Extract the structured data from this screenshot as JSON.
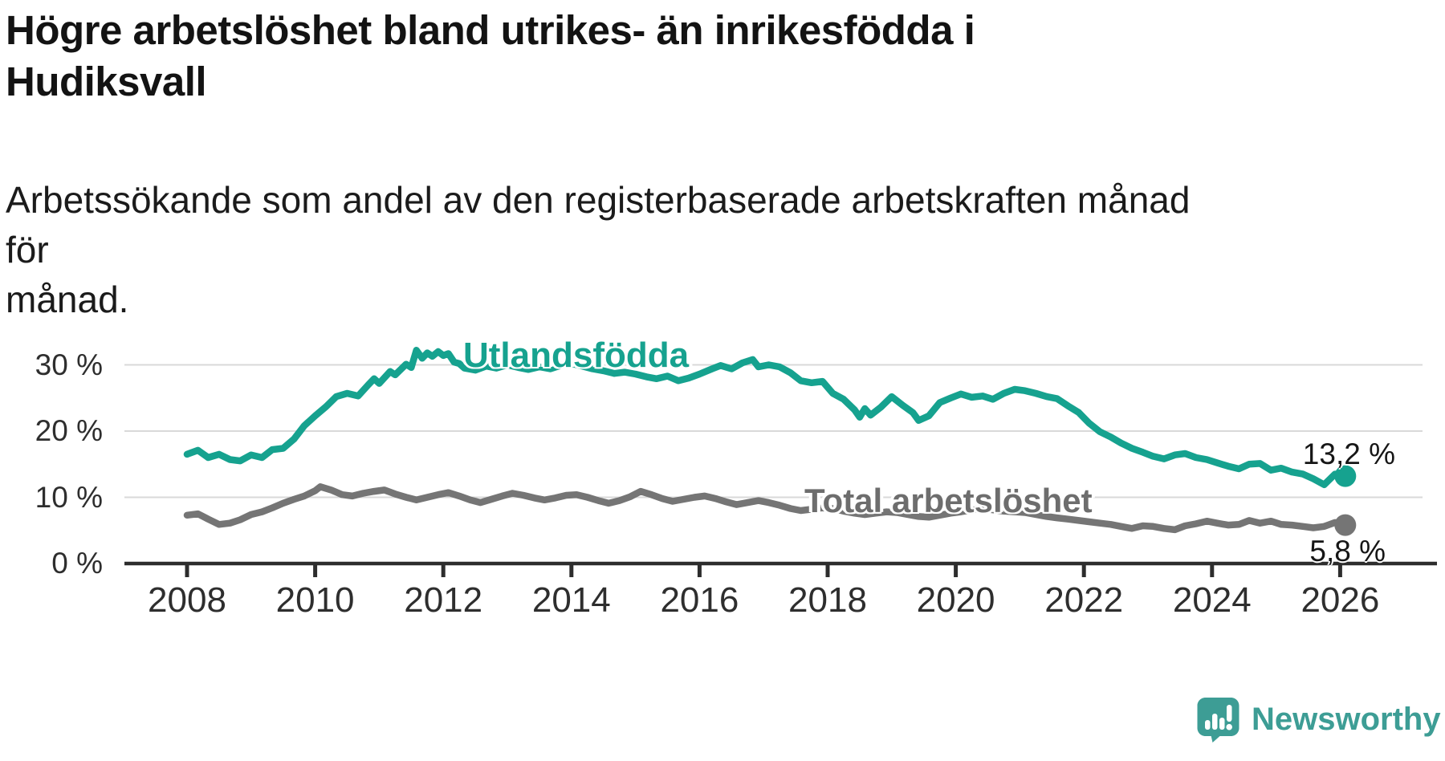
{
  "chart_data": {
    "type": "line",
    "title": "Högre arbetslöshet bland utrikes- än inrikesfödda i Hudiksvall",
    "title_lines": [
      "Högre arbetslöshet bland utrikes- än inrikesfödda i",
      "Hudiksvall"
    ],
    "subtitle": "Arbetssökande som andel av den registerbaserade arbetskraften månad för månad.",
    "subtitle_lines": [
      "Arbetssökande som andel av den registerbaserade arbetskraften månad för",
      "månad."
    ],
    "xlabel": "",
    "ylabel": "",
    "unit": "%",
    "grid": "horizontal",
    "legend_position": "inline-labels-on-chart",
    "axis": {
      "xlim": [
        2007.1,
        2027.5
      ],
      "ylim": [
        0,
        34.6
      ],
      "x_ticks": [
        2008,
        2010,
        2012,
        2014,
        2016,
        2018,
        2020,
        2022,
        2024,
        2026
      ],
      "y_ticks": [
        {
          "value": 0,
          "label": "0 %"
        },
        {
          "value": 10,
          "label": "10 %"
        },
        {
          "value": 20,
          "label": "20 %"
        },
        {
          "value": 30,
          "label": "30 %"
        }
      ]
    },
    "colors": {
      "utlandsfodda": "#16a28f",
      "total": "#757575",
      "gridline": "#d9d9d9",
      "axis_line": "#2d2d2d",
      "tick_text": "#2e2e2e"
    },
    "series": [
      {
        "name": "Utlandsfödda",
        "color": "#16a28f",
        "end_label": "13,2 %",
        "end_value": 13.2,
        "end_dot": true,
        "points": [
          [
            2008,
            16.5
          ],
          [
            2008.17,
            17.1
          ],
          [
            2008.33,
            16
          ],
          [
            2008.5,
            16.5
          ],
          [
            2008.67,
            15.7
          ],
          [
            2008.83,
            15.5
          ],
          [
            2009,
            16.4
          ],
          [
            2009.17,
            16
          ],
          [
            2009.33,
            17.2
          ],
          [
            2009.5,
            17.4
          ],
          [
            2009.67,
            18.8
          ],
          [
            2009.83,
            20.8
          ],
          [
            2010,
            22.3
          ],
          [
            2010.17,
            23.7
          ],
          [
            2010.33,
            25.2
          ],
          [
            2010.5,
            25.7
          ],
          [
            2010.67,
            25.3
          ],
          [
            2010.83,
            27
          ],
          [
            2010.92,
            27.9
          ],
          [
            2011,
            27.2
          ],
          [
            2011.17,
            29
          ],
          [
            2011.25,
            28.5
          ],
          [
            2011.42,
            30.1
          ],
          [
            2011.5,
            29.6
          ],
          [
            2011.58,
            32.2
          ],
          [
            2011.67,
            31
          ],
          [
            2011.75,
            31.8
          ],
          [
            2011.83,
            31.3
          ],
          [
            2011.92,
            32
          ],
          [
            2012,
            31.4
          ],
          [
            2012.08,
            31.7
          ],
          [
            2012.17,
            30.4
          ],
          [
            2012.25,
            30.2
          ],
          [
            2012.33,
            29.5
          ],
          [
            2012.5,
            29.2
          ],
          [
            2012.67,
            29.8
          ],
          [
            2012.83,
            29.5
          ],
          [
            2013,
            30
          ],
          [
            2013.17,
            29.6
          ],
          [
            2013.33,
            29.3
          ],
          [
            2013.5,
            29.7
          ],
          [
            2013.67,
            29.4
          ],
          [
            2013.83,
            29.9
          ],
          [
            2014,
            30.2
          ],
          [
            2014.17,
            29.8
          ],
          [
            2014.33,
            29.4
          ],
          [
            2014.5,
            29.1
          ],
          [
            2014.67,
            28.7
          ],
          [
            2014.83,
            28.9
          ],
          [
            2015,
            28.6
          ],
          [
            2015.17,
            28.2
          ],
          [
            2015.33,
            27.9
          ],
          [
            2015.5,
            28.3
          ],
          [
            2015.67,
            27.6
          ],
          [
            2015.83,
            28
          ],
          [
            2016,
            28.6
          ],
          [
            2016.17,
            29.3
          ],
          [
            2016.33,
            29.9
          ],
          [
            2016.5,
            29.4
          ],
          [
            2016.67,
            30.3
          ],
          [
            2016.83,
            30.8
          ],
          [
            2016.92,
            29.7
          ],
          [
            2017.08,
            30
          ],
          [
            2017.25,
            29.7
          ],
          [
            2017.42,
            28.8
          ],
          [
            2017.58,
            27.6
          ],
          [
            2017.75,
            27.3
          ],
          [
            2017.92,
            27.5
          ],
          [
            2018.08,
            25.7
          ],
          [
            2018.25,
            24.8
          ],
          [
            2018.42,
            23.2
          ],
          [
            2018.5,
            22.1
          ],
          [
            2018.58,
            23.4
          ],
          [
            2018.67,
            22.4
          ],
          [
            2018.83,
            23.6
          ],
          [
            2019,
            25.2
          ],
          [
            2019.17,
            23.9
          ],
          [
            2019.33,
            22.8
          ],
          [
            2019.42,
            21.6
          ],
          [
            2019.58,
            22.3
          ],
          [
            2019.75,
            24.3
          ],
          [
            2019.92,
            25
          ],
          [
            2020.08,
            25.6
          ],
          [
            2020.25,
            25.1
          ],
          [
            2020.42,
            25.3
          ],
          [
            2020.58,
            24.8
          ],
          [
            2020.75,
            25.7
          ],
          [
            2020.92,
            26.3
          ],
          [
            2021.08,
            26.1
          ],
          [
            2021.25,
            25.7
          ],
          [
            2021.42,
            25.2
          ],
          [
            2021.58,
            24.9
          ],
          [
            2021.75,
            23.8
          ],
          [
            2021.92,
            22.8
          ],
          [
            2022.08,
            21.2
          ],
          [
            2022.25,
            19.9
          ],
          [
            2022.42,
            19.1
          ],
          [
            2022.58,
            18.2
          ],
          [
            2022.75,
            17.4
          ],
          [
            2022.92,
            16.8
          ],
          [
            2023.08,
            16.2
          ],
          [
            2023.25,
            15.8
          ],
          [
            2023.42,
            16.4
          ],
          [
            2023.58,
            16.6
          ],
          [
            2023.75,
            16
          ],
          [
            2023.92,
            15.7
          ],
          [
            2024.08,
            15.2
          ],
          [
            2024.25,
            14.7
          ],
          [
            2024.42,
            14.3
          ],
          [
            2024.58,
            15
          ],
          [
            2024.75,
            15.1
          ],
          [
            2024.92,
            14.1
          ],
          [
            2025.08,
            14.4
          ],
          [
            2025.25,
            13.8
          ],
          [
            2025.42,
            13.5
          ],
          [
            2025.58,
            12.8
          ],
          [
            2025.75,
            11.9
          ],
          [
            2025.92,
            13.5
          ],
          [
            2026.08,
            13.2
          ]
        ]
      },
      {
        "name": "Total arbetslöshet",
        "color": "#757575",
        "end_label": "5,8 %",
        "end_value": 5.8,
        "end_dot": true,
        "points": [
          [
            2008,
            7.3
          ],
          [
            2008.17,
            7.5
          ],
          [
            2008.33,
            6.7
          ],
          [
            2008.5,
            5.9
          ],
          [
            2008.67,
            6.1
          ],
          [
            2008.83,
            6.6
          ],
          [
            2009,
            7.4
          ],
          [
            2009.17,
            7.8
          ],
          [
            2009.33,
            8.4
          ],
          [
            2009.5,
            9.1
          ],
          [
            2009.67,
            9.7
          ],
          [
            2009.83,
            10.2
          ],
          [
            2010,
            11
          ],
          [
            2010.08,
            11.6
          ],
          [
            2010.25,
            11.1
          ],
          [
            2010.42,
            10.4
          ],
          [
            2010.58,
            10.2
          ],
          [
            2010.75,
            10.6
          ],
          [
            2010.92,
            10.9
          ],
          [
            2011.08,
            11.1
          ],
          [
            2011.25,
            10.5
          ],
          [
            2011.42,
            10
          ],
          [
            2011.58,
            9.6
          ],
          [
            2011.75,
            10
          ],
          [
            2011.92,
            10.4
          ],
          [
            2012.08,
            10.7
          ],
          [
            2012.25,
            10.2
          ],
          [
            2012.42,
            9.6
          ],
          [
            2012.58,
            9.2
          ],
          [
            2012.75,
            9.7
          ],
          [
            2012.92,
            10.2
          ],
          [
            2013.08,
            10.6
          ],
          [
            2013.25,
            10.3
          ],
          [
            2013.42,
            9.9
          ],
          [
            2013.58,
            9.6
          ],
          [
            2013.75,
            9.9
          ],
          [
            2013.92,
            10.3
          ],
          [
            2014.08,
            10.4
          ],
          [
            2014.25,
            10
          ],
          [
            2014.42,
            9.5
          ],
          [
            2014.58,
            9.1
          ],
          [
            2014.75,
            9.5
          ],
          [
            2014.92,
            10.1
          ],
          [
            2015.08,
            10.9
          ],
          [
            2015.25,
            10.4
          ],
          [
            2015.42,
            9.8
          ],
          [
            2015.58,
            9.4
          ],
          [
            2015.75,
            9.7
          ],
          [
            2015.92,
            10
          ],
          [
            2016.08,
            10.2
          ],
          [
            2016.25,
            9.8
          ],
          [
            2016.42,
            9.3
          ],
          [
            2016.58,
            8.9
          ],
          [
            2016.75,
            9.2
          ],
          [
            2016.92,
            9.5
          ],
          [
            2017.08,
            9.2
          ],
          [
            2017.25,
            8.8
          ],
          [
            2017.42,
            8.3
          ],
          [
            2017.58,
            8
          ],
          [
            2017.75,
            8.2
          ],
          [
            2017.92,
            8.4
          ],
          [
            2018.08,
            8.3
          ],
          [
            2018.25,
            7.9
          ],
          [
            2018.42,
            7.6
          ],
          [
            2018.58,
            7.4
          ],
          [
            2018.75,
            7.6
          ],
          [
            2018.92,
            7.8
          ],
          [
            2019.08,
            7.7
          ],
          [
            2019.25,
            7.4
          ],
          [
            2019.42,
            7.1
          ],
          [
            2019.58,
            7
          ],
          [
            2019.75,
            7.3
          ],
          [
            2019.92,
            7.6
          ],
          [
            2020.08,
            7.8
          ],
          [
            2020.25,
            8.1
          ],
          [
            2020.42,
            8.3
          ],
          [
            2020.58,
            8.1
          ],
          [
            2020.75,
            7.9
          ],
          [
            2020.92,
            7.8
          ],
          [
            2021.08,
            7.7
          ],
          [
            2021.25,
            7.4
          ],
          [
            2021.42,
            7.1
          ],
          [
            2021.58,
            6.9
          ],
          [
            2021.75,
            6.7
          ],
          [
            2021.92,
            6.5
          ],
          [
            2022.08,
            6.3
          ],
          [
            2022.25,
            6.1
          ],
          [
            2022.42,
            5.9
          ],
          [
            2022.58,
            5.6
          ],
          [
            2022.75,
            5.3
          ],
          [
            2022.92,
            5.7
          ],
          [
            2023.08,
            5.6
          ],
          [
            2023.25,
            5.3
          ],
          [
            2023.42,
            5.1
          ],
          [
            2023.58,
            5.7
          ],
          [
            2023.75,
            6
          ],
          [
            2023.92,
            6.4
          ],
          [
            2024.08,
            6.1
          ],
          [
            2024.25,
            5.8
          ],
          [
            2024.42,
            5.9
          ],
          [
            2024.58,
            6.5
          ],
          [
            2024.75,
            6.1
          ],
          [
            2024.92,
            6.4
          ],
          [
            2025.08,
            5.9
          ],
          [
            2025.25,
            5.8
          ],
          [
            2025.42,
            5.6
          ],
          [
            2025.58,
            5.4
          ],
          [
            2025.75,
            5.6
          ],
          [
            2025.92,
            6.2
          ],
          [
            2026.08,
            5.8
          ]
        ]
      }
    ]
  },
  "branding": {
    "name": "Newsworthy",
    "logo_icon": "speech-bubble-bar-chart-icon",
    "color": "#3d9d95"
  }
}
